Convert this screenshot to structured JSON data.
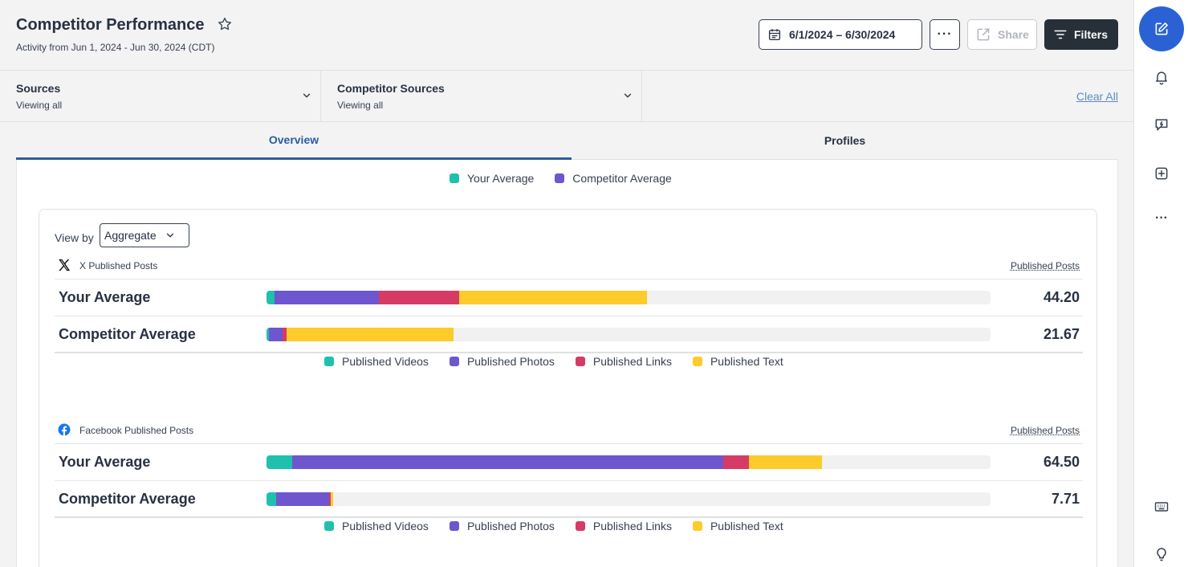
{
  "header": {
    "title": "Competitor Performance",
    "subtitle": "Activity from Jun 1, 2024 - Jun 30, 2024 (CDT)",
    "date_range": "6/1/2024 – 6/30/2024",
    "more_label": "···",
    "share_label": "Share",
    "filters_label": "Filters"
  },
  "filters": {
    "sources_label": "Sources",
    "sources_value": "Viewing all",
    "competitor_label": "Competitor Sources",
    "competitor_value": "Viewing all",
    "clear_all": "Clear All"
  },
  "tabs": [
    {
      "label": "Overview",
      "active": true
    },
    {
      "label": "Profiles",
      "active": false
    }
  ],
  "top_legend": [
    {
      "label": "Your Average",
      "color": "#1fc1ae"
    },
    {
      "label": "Competitor Average",
      "color": "#6e56cf"
    }
  ],
  "view_by": {
    "label": "View by",
    "value": "Aggregate"
  },
  "type_legend": [
    {
      "label": "Published Videos",
      "color": "#1fc1ae"
    },
    {
      "label": "Published Photos",
      "color": "#6e56cf"
    },
    {
      "label": "Published Links",
      "color": "#d63b66"
    },
    {
      "label": "Published Text",
      "color": "#fdcb2a"
    }
  ],
  "sections": [
    {
      "network": "x-icon",
      "title": "X Published Posts",
      "metric": "Published Posts",
      "rows": [
        {
          "label": "Your Average",
          "value": "44.20",
          "segments": [
            0.011,
            0.144,
            0.111,
            0.26
          ]
        },
        {
          "label": "Competitor Average",
          "value": "21.67",
          "segments": [
            0.003,
            0.019,
            0.006,
            0.23
          ]
        }
      ]
    },
    {
      "network": "facebook-icon",
      "title": "Facebook Published Posts",
      "metric": "Published Posts",
      "rows": [
        {
          "label": "Your Average",
          "value": "64.50",
          "segments": [
            0.035,
            0.596,
            0.035,
            0.101
          ]
        },
        {
          "label": "Competitor Average",
          "value": "7.71",
          "segments": [
            0.013,
            0.074,
            0.002,
            0.003
          ]
        }
      ]
    }
  ],
  "colors": {
    "accent": "#2a5ca3",
    "compose": "#2a62d6",
    "videos": "#1fc1ae",
    "photos": "#6e56cf",
    "links": "#d63b66",
    "text": "#fdcb2a"
  },
  "rail_icons": [
    "compose-icon",
    "bell-icon",
    "feedback-icon",
    "add-icon",
    "more-icon",
    "keyboard-icon",
    "lightbulb-icon"
  ]
}
